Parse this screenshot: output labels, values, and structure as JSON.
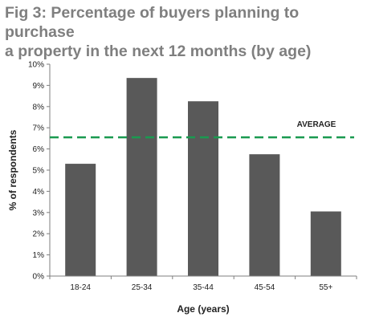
{
  "figure": {
    "title_line1": "Fig 3: Percentage of buyers planning to purchase",
    "title_line2": "a property in the next 12 months (by age)"
  },
  "chart_data": {
    "type": "bar",
    "categories": [
      "18-24",
      "25-34",
      "35-44",
      "45-54",
      "55+"
    ],
    "values": [
      5.3,
      9.35,
      8.25,
      5.75,
      3.05
    ],
    "xlabel": "Age (years)",
    "ylabel": "% of respondents",
    "ylim": [
      0,
      10
    ],
    "yticks": [
      "0%",
      "1%",
      "2%",
      "3%",
      "4%",
      "5%",
      "6%",
      "7%",
      "8%",
      "9%",
      "10%"
    ],
    "reference_line": {
      "label": "AVERAGE",
      "value": 6.55,
      "color": "#1a9a50"
    },
    "bar_color": "#595959",
    "grid": false
  }
}
